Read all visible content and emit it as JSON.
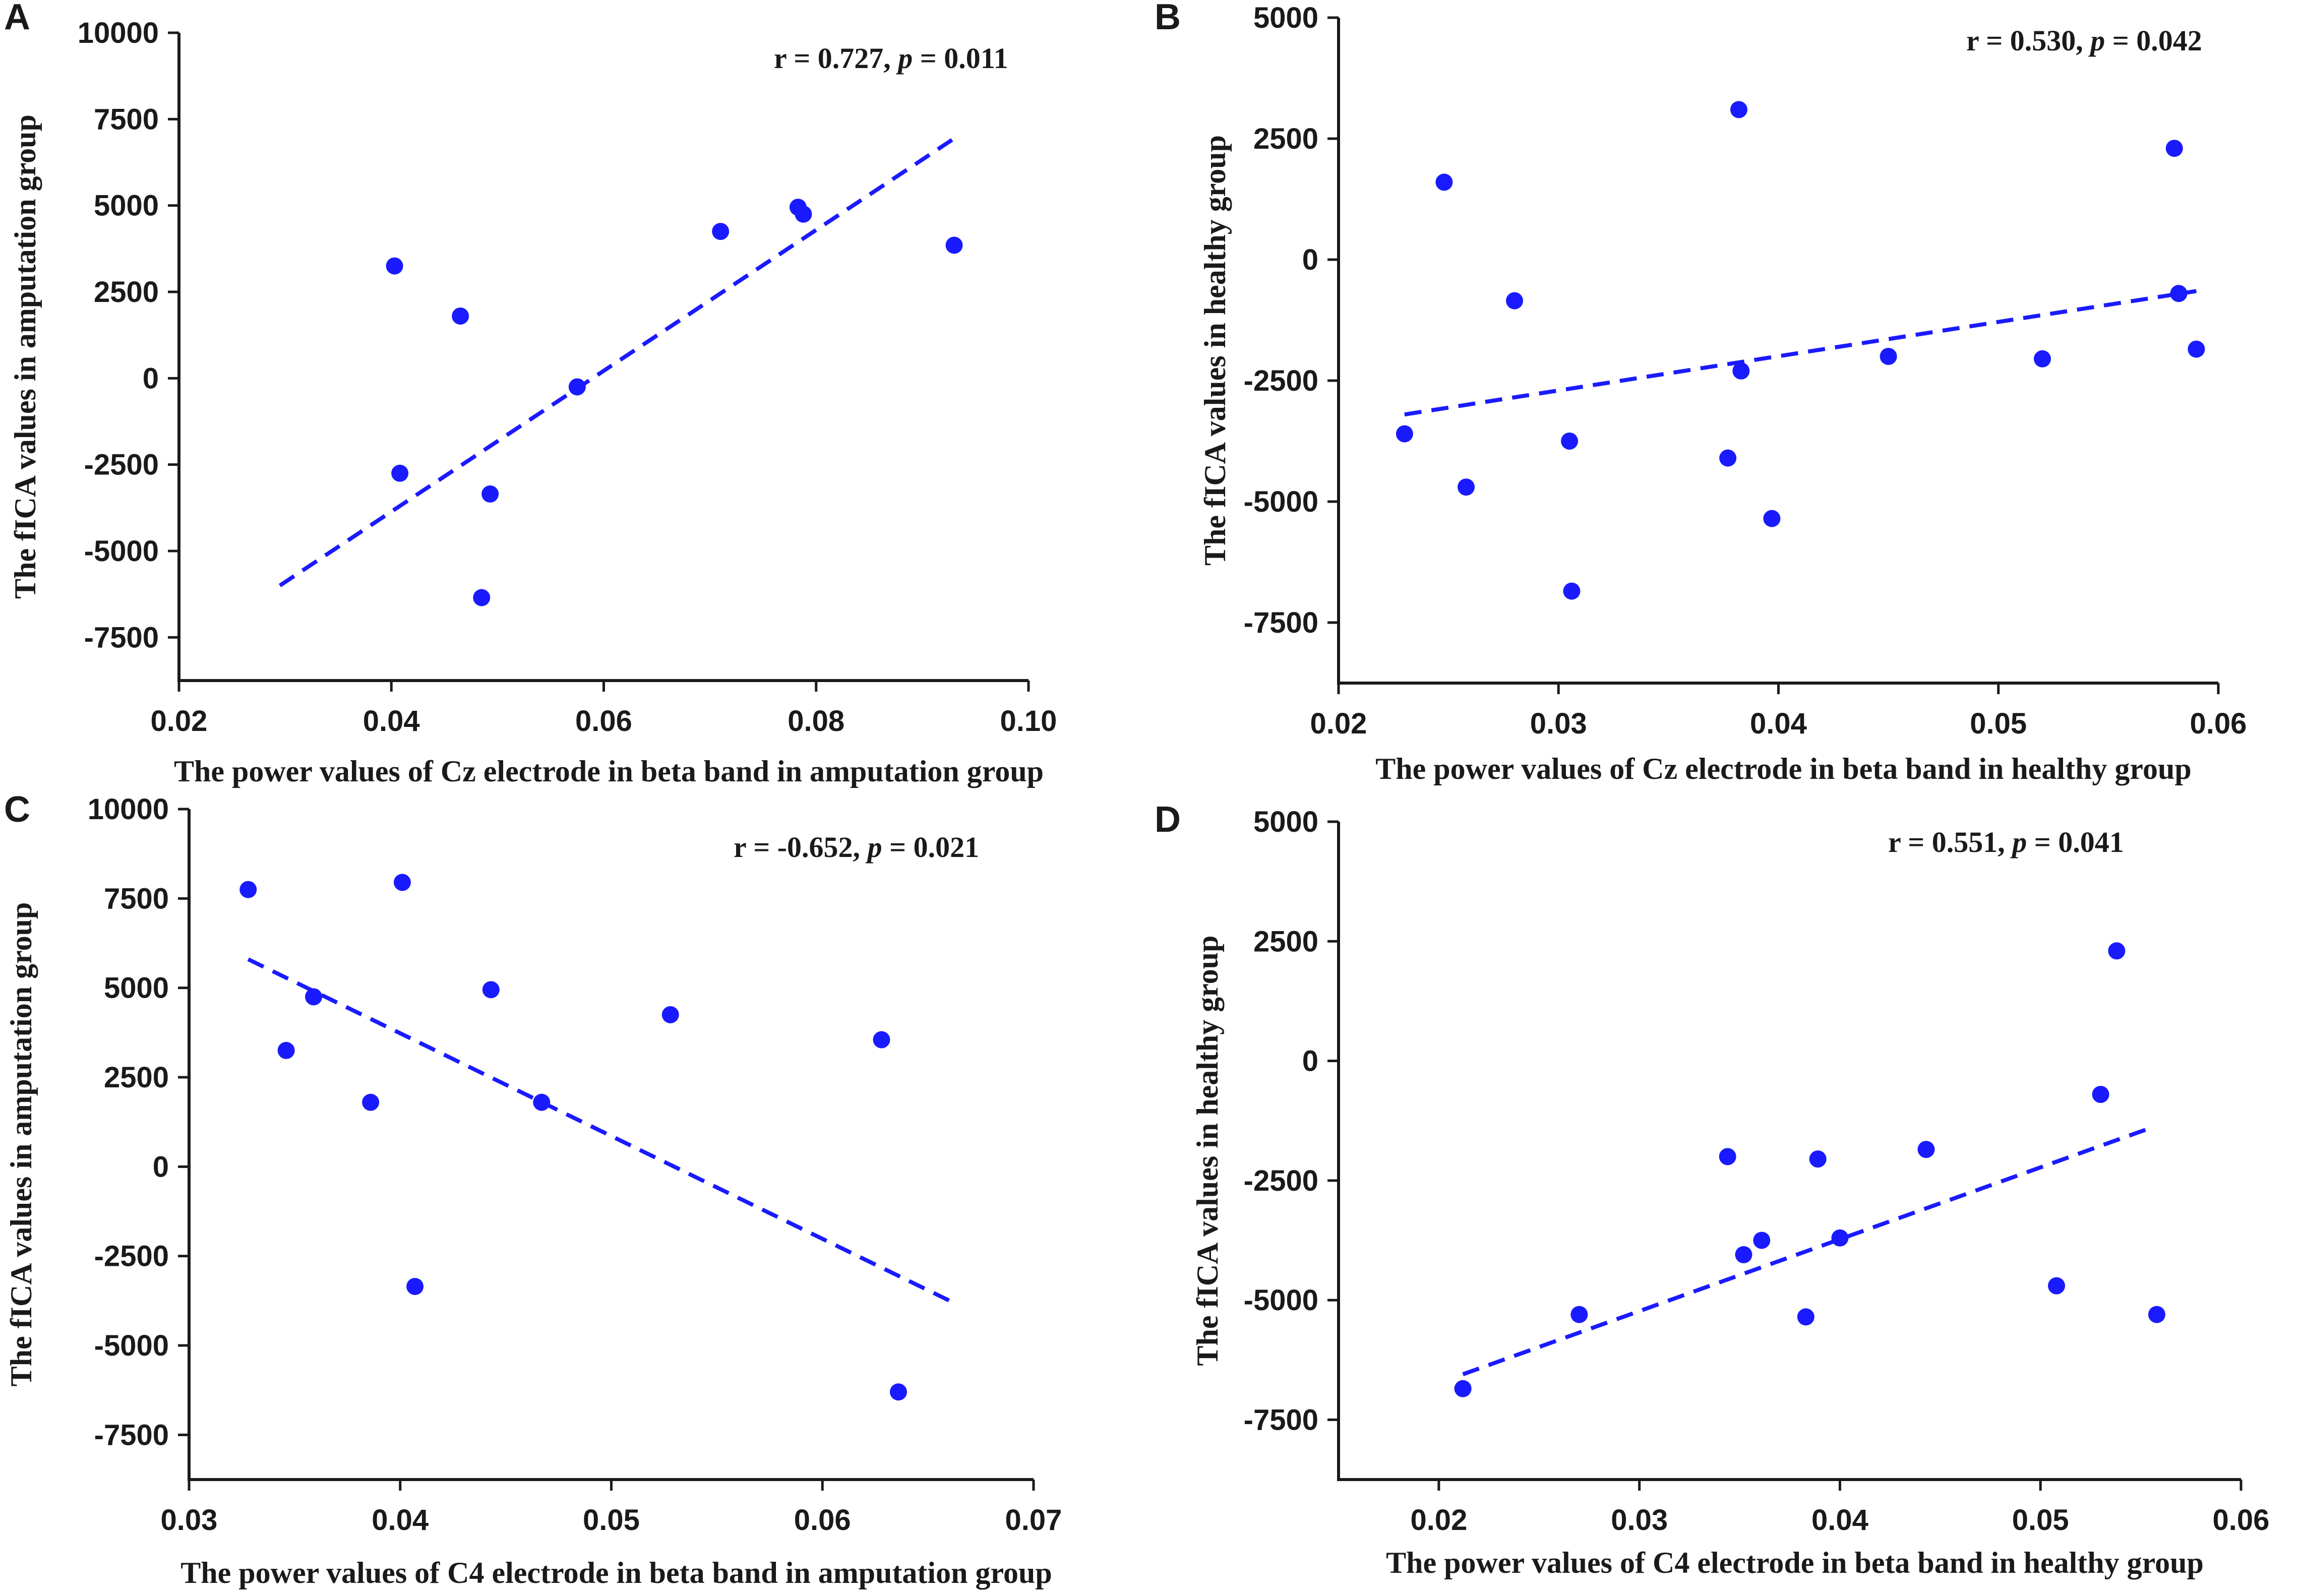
{
  "figure": {
    "accent_color": "#1a1aff",
    "axis_color": "#1a1a1a"
  },
  "chart_data": [
    {
      "type": "scatter",
      "panel": "A",
      "stat": {
        "r_prefix": "r = 0.727, ",
        "p_symbol": "p",
        "p_suffix": " = 0.011"
      },
      "xlabel": "The power values of Cz electrode in beta band in amputation group",
      "ylabel": "The fICA values in amputation group",
      "xlim": [
        0.02,
        0.1
      ],
      "ylim": [
        -8750,
        10000
      ],
      "xticks": [
        0.02,
        0.04,
        0.06,
        0.08,
        0.1
      ],
      "xtick_labels": [
        "0.02",
        "0.04",
        "0.06",
        "0.08",
        "0.10"
      ],
      "yticks": [
        -7500,
        -5000,
        -2500,
        0,
        2500,
        5000,
        7500,
        10000
      ],
      "ytick_labels": [
        "-7500",
        "-5000",
        "-2500",
        "0",
        "2500",
        "5000",
        "7500",
        "10000"
      ],
      "points": [
        {
          "x": 0.0403,
          "y": 3250
        },
        {
          "x": 0.0408,
          "y": -2750
        },
        {
          "x": 0.0465,
          "y": 1800
        },
        {
          "x": 0.0485,
          "y": -6350
        },
        {
          "x": 0.0493,
          "y": -3350
        },
        {
          "x": 0.0575,
          "y": -250
        },
        {
          "x": 0.071,
          "y": 4250
        },
        {
          "x": 0.0783,
          "y": 4950
        },
        {
          "x": 0.0788,
          "y": 4750
        },
        {
          "x": 0.093,
          "y": 3850
        }
      ],
      "fit_line": {
        "x": [
          0.0295,
          0.0928
        ],
        "y": [
          -6000,
          6900
        ]
      }
    },
    {
      "type": "scatter",
      "panel": "B",
      "stat": {
        "r_prefix": "r = 0.530, ",
        "p_symbol": "p",
        "p_suffix": " = 0.042"
      },
      "xlabel": "The power values of Cz electrode in beta band in healthy group",
      "ylabel": "The fICA values in healthy group",
      "xlim": [
        0.02,
        0.06
      ],
      "ylim": [
        -8750,
        5000
      ],
      "xticks": [
        0.02,
        0.03,
        0.04,
        0.05,
        0.06
      ],
      "xtick_labels": [
        "0.02",
        "0.03",
        "0.04",
        "0.05",
        "0.06"
      ],
      "yticks": [
        -7500,
        -5000,
        -2500,
        0,
        2500,
        5000
      ],
      "ytick_labels": [
        "-7500",
        "-5000",
        "-2500",
        "0",
        "2500",
        "5000"
      ],
      "points": [
        {
          "x": 0.023,
          "y": -3600
        },
        {
          "x": 0.0248,
          "y": 1600
        },
        {
          "x": 0.0258,
          "y": -4700
        },
        {
          "x": 0.028,
          "y": -850
        },
        {
          "x": 0.0305,
          "y": -3750
        },
        {
          "x": 0.0306,
          "y": -6850
        },
        {
          "x": 0.0377,
          "y": -4100
        },
        {
          "x": 0.0382,
          "y": 3100
        },
        {
          "x": 0.0383,
          "y": -2300
        },
        {
          "x": 0.0397,
          "y": -5350
        },
        {
          "x": 0.045,
          "y": -2000
        },
        {
          "x": 0.052,
          "y": -2050
        },
        {
          "x": 0.058,
          "y": 2300
        },
        {
          "x": 0.0582,
          "y": -700
        },
        {
          "x": 0.059,
          "y": -1850
        }
      ],
      "fit_line": {
        "x": [
          0.023,
          0.059
        ],
        "y": [
          -3200,
          -650
        ]
      }
    },
    {
      "type": "scatter",
      "panel": "C",
      "stat": {
        "r_prefix": "r = -0.652, ",
        "p_symbol": "p",
        "p_suffix": " = 0.021"
      },
      "xlabel": "The power values of C4 electrode in beta band in amputation group",
      "ylabel": "The fICA values in amputation group",
      "xlim": [
        0.03,
        0.07
      ],
      "ylim": [
        -8750,
        10000
      ],
      "xticks": [
        0.03,
        0.04,
        0.05,
        0.06,
        0.07
      ],
      "xtick_labels": [
        "0.03",
        "0.04",
        "0.05",
        "0.06",
        "0.07"
      ],
      "yticks": [
        -7500,
        -5000,
        -2500,
        0,
        2500,
        5000,
        7500,
        10000
      ],
      "ytick_labels": [
        "-7500",
        "-5000",
        "-2500",
        "0",
        "2500",
        "5000",
        "7500",
        "10000"
      ],
      "points": [
        {
          "x": 0.0328,
          "y": 7750
        },
        {
          "x": 0.0346,
          "y": 3250
        },
        {
          "x": 0.0359,
          "y": 4750
        },
        {
          "x": 0.0386,
          "y": 1800
        },
        {
          "x": 0.0401,
          "y": 7950
        },
        {
          "x": 0.0407,
          "y": -3350
        },
        {
          "x": 0.0443,
          "y": 4950
        },
        {
          "x": 0.0467,
          "y": 1800
        },
        {
          "x": 0.0528,
          "y": 4250
        },
        {
          "x": 0.0628,
          "y": 3550
        },
        {
          "x": 0.0636,
          "y": -6300
        }
      ],
      "fit_line": {
        "x": [
          0.0328,
          0.0662
        ],
        "y": [
          5800,
          -3800
        ]
      }
    },
    {
      "type": "scatter",
      "panel": "D",
      "stat": {
        "r_prefix": "r = 0.551, ",
        "p_symbol": "p",
        "p_suffix": " = 0.041"
      },
      "xlabel": "The power values of C4 electrode in beta band in healthy group",
      "ylabel": "The fICA values in healthy group",
      "xlim": [
        0.015,
        0.06
      ],
      "ylim": [
        -8750,
        5000
      ],
      "xticks": [
        0.02,
        0.03,
        0.04,
        0.05,
        0.06
      ],
      "xtick_labels": [
        "0.02",
        "0.03",
        "0.04",
        "0.05",
        "0.06"
      ],
      "yticks": [
        -7500,
        -5000,
        -2500,
        0,
        2500,
        5000
      ],
      "ytick_labels": [
        "-7500",
        "-5000",
        "-2500",
        "0",
        "2500",
        "5000"
      ],
      "points": [
        {
          "x": 0.0212,
          "y": -6850
        },
        {
          "x": 0.027,
          "y": -5300
        },
        {
          "x": 0.0344,
          "y": -2000
        },
        {
          "x": 0.0352,
          "y": -4050
        },
        {
          "x": 0.0361,
          "y": -3750
        },
        {
          "x": 0.0383,
          "y": -5350
        },
        {
          "x": 0.0389,
          "y": -2050
        },
        {
          "x": 0.04,
          "y": -3700
        },
        {
          "x": 0.0443,
          "y": -1850
        },
        {
          "x": 0.0508,
          "y": -4700
        },
        {
          "x": 0.053,
          "y": -700
        },
        {
          "x": 0.0538,
          "y": 2300
        },
        {
          "x": 0.0558,
          "y": -5300
        }
      ],
      "fit_line": {
        "x": [
          0.0212,
          0.0555
        ],
        "y": [
          -6550,
          -1400
        ]
      }
    }
  ]
}
